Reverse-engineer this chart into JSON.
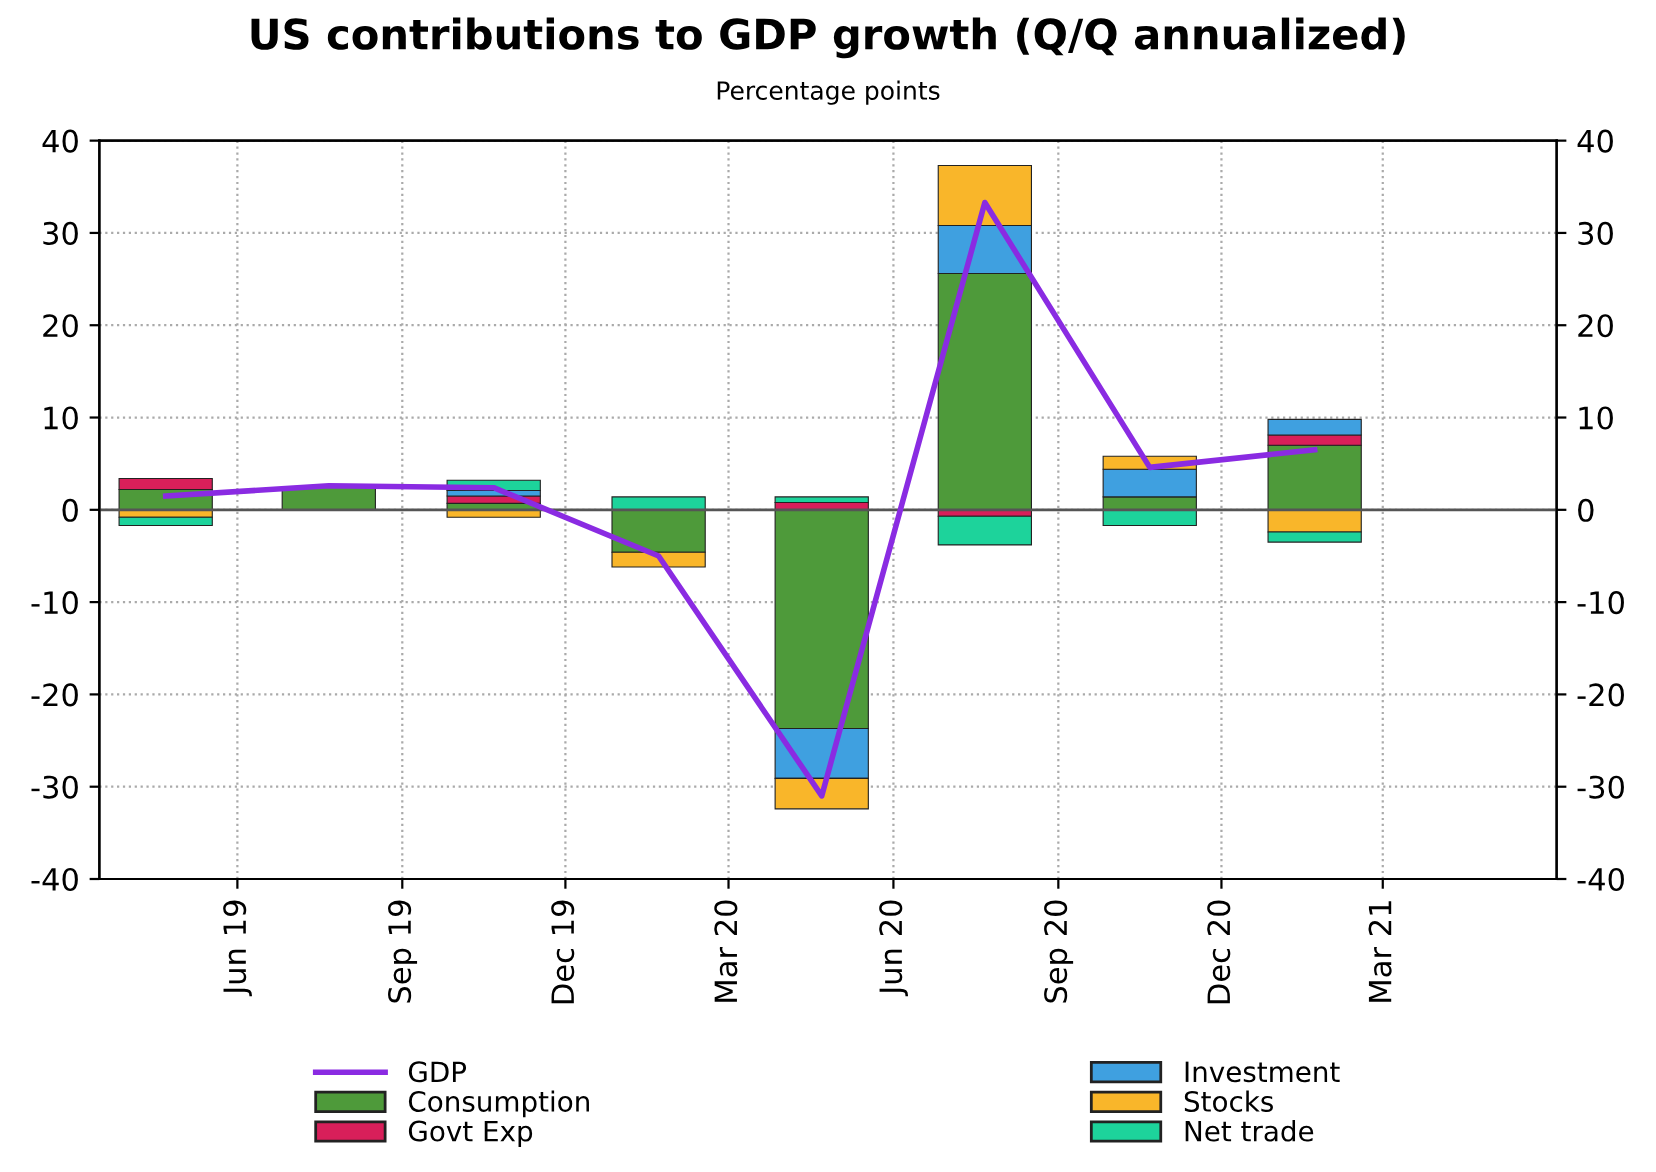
{
  "chart_data": {
    "type": "bar",
    "stacked": true,
    "title": "US contributions to GDP growth (Q/Q annualized)",
    "subtitle": "Percentage points",
    "x": [
      "2019-04-22",
      "2019-07-22",
      "2019-10-22",
      "2020-01-22",
      "2020-04-22",
      "2020-07-22",
      "2020-10-22",
      "2021-01-22"
    ],
    "series": [
      {
        "name": "GDP",
        "type": "line",
        "color": "#8a2be2",
        "values": [
          1.5,
          2.6,
          2.4,
          -5.0,
          -31.0,
          33.3,
          4.6,
          6.5
        ]
      },
      {
        "name": "Consumption",
        "color": "#4e9a3a",
        "values": [
          2.2,
          2.5,
          0.7,
          -4.6,
          -23.7,
          25.6,
          1.4,
          7.0
        ]
      },
      {
        "name": "Govt Exp",
        "color": "#d81f5a",
        "values": [
          1.2,
          0,
          0.8,
          0,
          0.8,
          -0.7,
          0,
          1.1
        ]
      },
      {
        "name": "Investment",
        "color": "#3fa0e0",
        "values": [
          0,
          null,
          0.6,
          0,
          -5.4,
          5.2,
          3.0,
          1.7
        ]
      },
      {
        "name": "Stocks",
        "color": "#f9b62a",
        "values": [
          -0.8,
          0,
          -0.8,
          -1.6,
          -3.3,
          6.5,
          1.4,
          -2.4
        ]
      },
      {
        "name": "Net trade",
        "color": "#1dd39b",
        "values": [
          -0.9,
          0,
          1.1,
          1.4,
          0.6,
          -3.1,
          -1.7,
          -1.1
        ]
      }
    ],
    "xlim": [
      "2019-03-16",
      "2021-06-06"
    ],
    "xticks": [
      {
        "value": "2019-06-01",
        "label": "Jun 19"
      },
      {
        "value": "2019-09-01",
        "label": "Sep 19"
      },
      {
        "value": "2019-12-01",
        "label": "Dec 19"
      },
      {
        "value": "2020-03-01",
        "label": "Mar 20"
      },
      {
        "value": "2020-06-01",
        "label": "Jun 20"
      },
      {
        "value": "2020-09-01",
        "label": "Sep 20"
      },
      {
        "value": "2020-12-01",
        "label": "Dec 20"
      },
      {
        "value": "2021-03-01",
        "label": "Mar 21"
      }
    ],
    "ylim": [
      -40,
      40
    ],
    "yticks": [
      -40,
      -30,
      -20,
      -10,
      0,
      10,
      20,
      30,
      40
    ],
    "y2lim": [
      -40,
      40
    ],
    "y2ticks": [
      -40,
      -30,
      -20,
      -10,
      0,
      10,
      20,
      30,
      40
    ],
    "ref_lines": [
      {
        "axis": "y",
        "value": 0,
        "color": "#555555"
      }
    ],
    "grid": true,
    "legend": "bottom"
  }
}
